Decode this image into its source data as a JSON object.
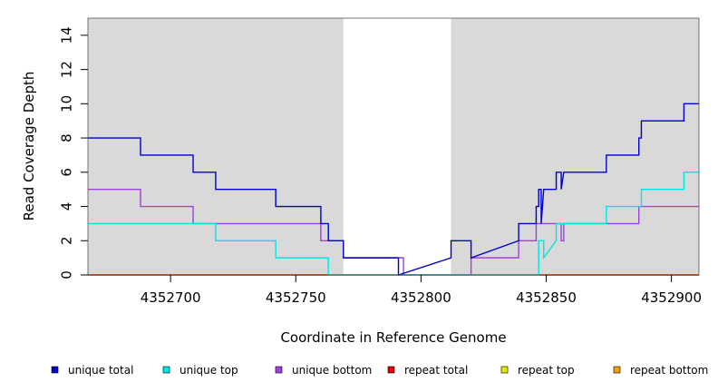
{
  "chart_data": {
    "type": "line",
    "title": "",
    "xlabel": "Coordinate in Reference Genome",
    "ylabel": "Read Coverage Depth",
    "xlim": [
      4352667,
      4352911
    ],
    "ylim": [
      0,
      15
    ],
    "x_ticks": [
      4352700,
      4352750,
      4352800,
      4352850,
      4352900
    ],
    "x_tick_labels": [
      "4352700",
      "4352750",
      "4352800",
      "4352850",
      "4352900"
    ],
    "y_ticks": [
      0,
      2,
      4,
      6,
      8,
      10,
      12,
      14
    ],
    "y_tick_labels": [
      "0",
      "2",
      "4",
      "6",
      "8",
      "10",
      "12",
      "14"
    ],
    "shaded_regions": [
      {
        "from": 4352667,
        "to": 4352769,
        "color": "#d9d9d9"
      },
      {
        "from": 4352812,
        "to": 4352911,
        "color": "#d9d9d9"
      }
    ],
    "legend_position": "bottom",
    "series": [
      {
        "name": "unique total",
        "color": "#0000cc",
        "x": [
          4352667,
          4352688,
          4352688,
          4352709,
          4352709,
          4352718,
          4352718,
          4352742,
          4352742,
          4352760,
          4352760,
          4352763,
          4352763,
          4352769,
          4352769,
          4352791,
          4352791,
          4352812,
          4352812,
          4352820,
          4352820,
          4352839,
          4352839,
          4352846,
          4352846,
          4352847,
          4352847,
          4352848,
          4352848,
          4352849,
          4352849,
          4352854,
          4352854,
          4352856,
          4352856,
          4352857,
          4352857,
          4352874,
          4352874,
          4352887,
          4352887,
          4352888,
          4352888,
          4352905,
          4352905,
          4352911
        ],
        "y": [
          8,
          8,
          7,
          7,
          6,
          6,
          5,
          5,
          4,
          4,
          3,
          3,
          2,
          2,
          1,
          1,
          0,
          1,
          2,
          2,
          1,
          2,
          3,
          3,
          4,
          4,
          5,
          5,
          3,
          5,
          5,
          5,
          6,
          6,
          5,
          6,
          6,
          6,
          7,
          7,
          8,
          8,
          9,
          9,
          10,
          10
        ]
      },
      {
        "name": "unique top",
        "color": "#00e5e5",
        "x": [
          4352667,
          4352718,
          4352718,
          4352742,
          4352742,
          4352763,
          4352763,
          4352847,
          4352847,
          4352849,
          4352849,
          4352854,
          4352854,
          4352874,
          4352874,
          4352888,
          4352888,
          4352905,
          4352905,
          4352911
        ],
        "y": [
          3,
          3,
          2,
          2,
          1,
          1,
          0,
          0,
          2,
          2,
          1,
          2,
          3,
          3,
          4,
          4,
          5,
          5,
          6,
          6
        ]
      },
      {
        "name": "unique bottom",
        "color": "#a040e0",
        "x": [
          4352667,
          4352688,
          4352688,
          4352709,
          4352709,
          4352760,
          4352760,
          4352769,
          4352769,
          4352793,
          4352793,
          4352820,
          4352820,
          4352839,
          4352839,
          4352846,
          4352846,
          4352847,
          4352847,
          4352856,
          4352856,
          4352857,
          4352857,
          4352887,
          4352887,
          4352911
        ],
        "y": [
          5,
          5,
          4,
          4,
          3,
          3,
          2,
          2,
          1,
          1,
          0,
          0,
          1,
          1,
          2,
          2,
          3,
          3,
          3,
          3,
          2,
          2,
          3,
          3,
          4,
          4
        ]
      },
      {
        "name": "repeat total",
        "color": "#e60000",
        "x": [
          4352667,
          4352911
        ],
        "y": [
          0,
          0
        ]
      },
      {
        "name": "repeat top",
        "color": "#e6e600",
        "x": [
          4352667,
          4352911
        ],
        "y": [
          0,
          0
        ]
      },
      {
        "name": "repeat bottom",
        "color": "#f0a000",
        "x": [
          4352667,
          4352911
        ],
        "y": [
          0,
          0
        ]
      }
    ]
  }
}
